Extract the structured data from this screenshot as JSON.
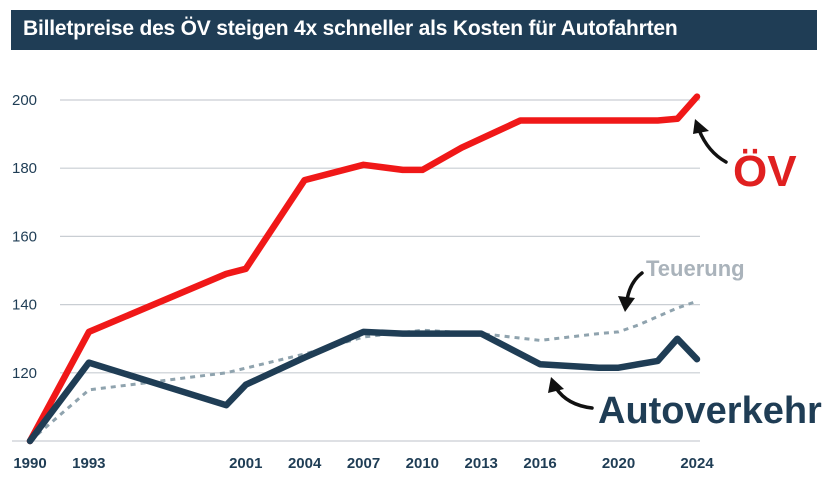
{
  "header": {
    "title": "Billetpreise des ÖV steigen 4x schneller als Kosten für Autofahrten"
  },
  "chart_data": {
    "type": "line",
    "title": "Billetpreise des ÖV steigen 4x schneller als Kosten für Autofahrten",
    "xlabel": "",
    "ylabel": "",
    "xlim": [
      1990,
      2024
    ],
    "ylim": [
      100,
      200
    ],
    "y_ticks": [
      120,
      140,
      160,
      180,
      200
    ],
    "x_ticks": [
      1990,
      1993,
      2001,
      2004,
      2007,
      2010,
      2013,
      2016,
      2020,
      2024
    ],
    "grid": "horizontal",
    "series": [
      {
        "name": "ÖV",
        "color": "#f01818",
        "style": "solid",
        "x": [
          1990,
          1993,
          2000,
          2001,
          2004,
          2007,
          2009,
          2010,
          2012,
          2015,
          2022,
          2023,
          2024
        ],
        "y": [
          100,
          132,
          149,
          150.5,
          176.5,
          181,
          179.5,
          179.5,
          186,
          194,
          194,
          194.5,
          201
        ]
      },
      {
        "name": "Autoverkehr",
        "color": "#1f3d55",
        "style": "solid",
        "x": [
          1990,
          1993,
          2000,
          2001,
          2004,
          2007,
          2009,
          2010,
          2012,
          2013,
          2016,
          2019,
          2020,
          2022,
          2023,
          2024
        ],
        "y": [
          100,
          123,
          110.5,
          116.5,
          124.5,
          132,
          131.5,
          131.5,
          131.5,
          131.5,
          122.5,
          121.5,
          121.5,
          123.5,
          130,
          124
        ]
      },
      {
        "name": "Teuerung",
        "color": "#8fa3ae",
        "style": "dashed",
        "x": [
          1990,
          1993,
          2000,
          2004,
          2007,
          2010,
          2013,
          2016,
          2019,
          2020,
          2021,
          2022,
          2023,
          2024
        ],
        "y": [
          100,
          115,
          120,
          125.5,
          130.5,
          132.5,
          131.5,
          129.5,
          131.5,
          132,
          134,
          136.5,
          139,
          141
        ]
      }
    ]
  }
}
